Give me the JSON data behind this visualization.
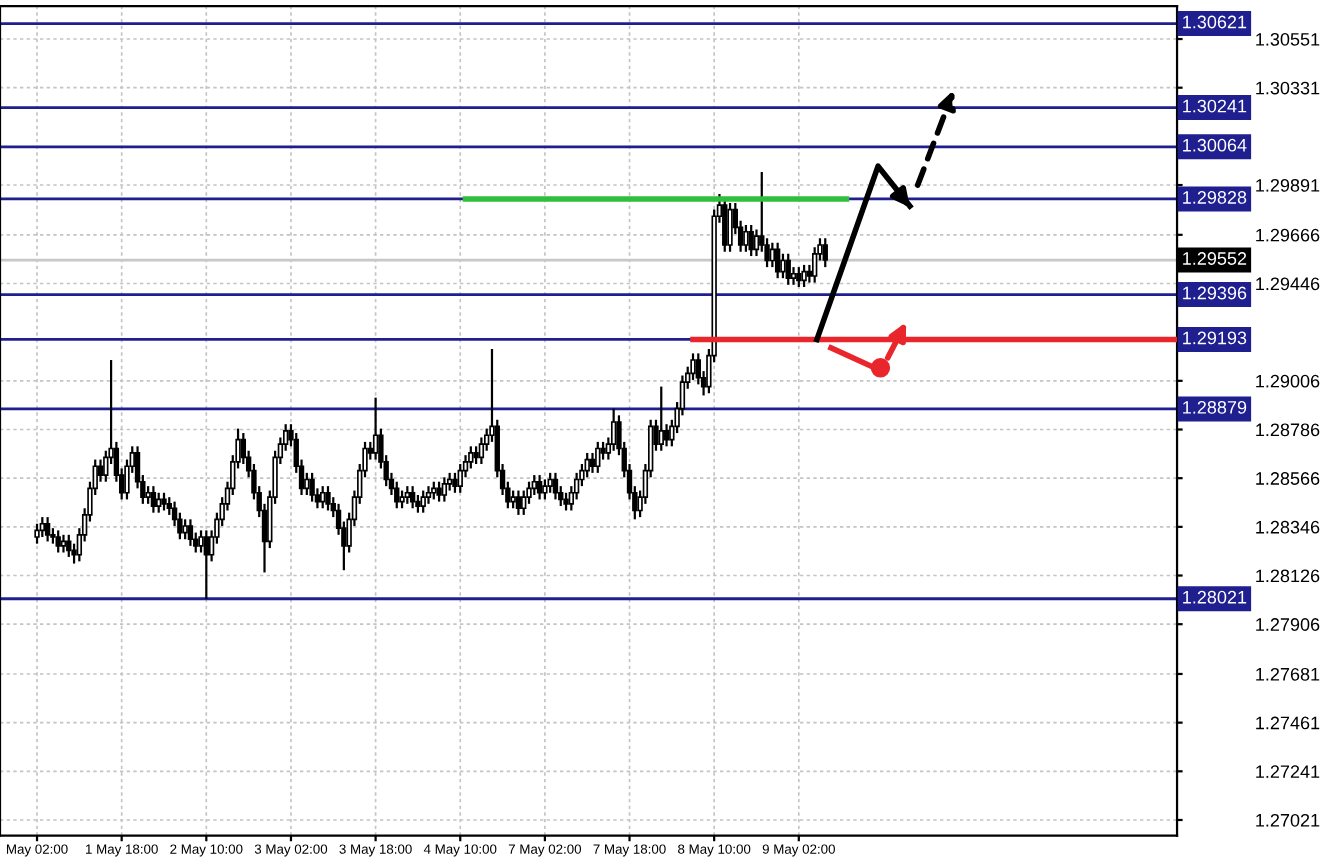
{
  "chart_data": {
    "type": "candlestick",
    "color": "#000000",
    "categories": [
      "May 02:00",
      null,
      null,
      null,
      null,
      null,
      null,
      null,
      null,
      null,
      null,
      null,
      null,
      null,
      null,
      null,
      "1 May 18:00",
      null,
      null,
      null,
      null,
      null,
      null,
      null,
      null,
      null,
      null,
      null,
      null,
      null,
      null,
      null,
      "2 May 10:00",
      null,
      null,
      null,
      null,
      null,
      null,
      null,
      null,
      null,
      null,
      null,
      null,
      null,
      null,
      null,
      "3 May 02:00",
      null,
      null,
      null,
      null,
      null,
      null,
      null,
      null,
      null,
      null,
      null,
      null,
      null,
      null,
      null,
      "3 May 18:00",
      null,
      null,
      null,
      null,
      null,
      null,
      null,
      null,
      null,
      null,
      null,
      null,
      null,
      null,
      null,
      "4 May 10:00",
      null,
      null,
      null,
      null,
      null,
      null,
      null,
      null,
      null,
      null,
      null,
      null,
      null,
      null,
      null,
      "7 May 02:00",
      null,
      null,
      null,
      null,
      null,
      null,
      null,
      null,
      null,
      null,
      null,
      null,
      null,
      null,
      null,
      "7 May 18:00",
      null,
      null,
      null,
      null,
      null,
      null,
      null,
      null,
      null,
      null,
      null,
      null,
      null,
      null,
      null,
      "8 May 10:00",
      null,
      null,
      null,
      null,
      null,
      null,
      null,
      null,
      null,
      null,
      null,
      null,
      null,
      null,
      null,
      "9 May 02:00",
      null,
      null,
      null,
      null,
      null,
      null,
      null,
      null,
      null,
      null,
      null,
      null,
      null,
      null,
      null,
      null,
      null,
      null,
      null,
      null,
      null,
      null,
      null,
      null,
      null,
      null,
      null,
      null,
      null,
      null,
      null,
      null,
      null,
      null,
      null,
      null,
      null,
      null,
      null,
      null,
      null,
      null,
      null,
      null,
      null,
      null,
      null,
      null,
      null,
      null,
      null,
      null,
      null,
      null,
      null,
      null,
      null,
      null,
      null,
      null,
      null,
      null,
      null,
      null,
      null,
      null,
      null,
      null,
      null,
      null,
      null
    ],
    "ohlc": [
      [
        1.283,
        1.2836,
        1.2827,
        1.2833
      ],
      [
        1.2833,
        1.2839,
        1.283,
        1.2836
      ],
      [
        1.2836,
        1.2839,
        1.2828,
        1.2831
      ],
      [
        1.2831,
        1.2834,
        1.2827,
        1.283
      ],
      [
        1.283,
        1.2833,
        1.2823,
        1.2826
      ],
      [
        1.2826,
        1.2831,
        1.2823,
        1.2828
      ],
      [
        1.2828,
        1.2831,
        1.2821,
        1.2824
      ],
      [
        1.2824,
        1.2827,
        1.2818,
        1.2822
      ],
      [
        1.2822,
        1.2834,
        1.2819,
        1.2831
      ],
      [
        1.2831,
        1.2843,
        1.2828,
        1.284
      ],
      [
        1.284,
        1.2855,
        1.2837,
        1.2852
      ],
      [
        1.2852,
        1.2865,
        1.2849,
        1.2862
      ],
      [
        1.2862,
        1.2865,
        1.2855,
        1.2858
      ],
      [
        1.2858,
        1.2869,
        1.2855,
        1.2866
      ],
      [
        1.2866,
        1.291,
        1.2863,
        1.287
      ],
      [
        1.287,
        1.2873,
        1.2855,
        1.2858
      ],
      [
        1.2858,
        1.2861,
        1.2847,
        1.285
      ],
      [
        1.285,
        1.2865,
        1.2847,
        1.2862
      ],
      [
        1.2862,
        1.2871,
        1.2859,
        1.2868
      ],
      [
        1.2868,
        1.2871,
        1.2852,
        1.2855
      ],
      [
        1.2855,
        1.2858,
        1.2845,
        1.2848
      ],
      [
        1.2848,
        1.2853,
        1.2845,
        1.285
      ],
      [
        1.285,
        1.2853,
        1.2841,
        1.2844
      ],
      [
        1.2844,
        1.285,
        1.2841,
        1.2847
      ],
      [
        1.2847,
        1.285,
        1.2842,
        1.2845
      ],
      [
        1.2845,
        1.2848,
        1.284,
        1.2843
      ],
      [
        1.2843,
        1.2846,
        1.2835,
        1.2838
      ],
      [
        1.2838,
        1.2841,
        1.2829,
        1.2832
      ],
      [
        1.2832,
        1.2838,
        1.2829,
        1.2835
      ],
      [
        1.2835,
        1.2838,
        1.2826,
        1.2829
      ],
      [
        1.2829,
        1.2832,
        1.2823,
        1.2826
      ],
      [
        1.2826,
        1.2833,
        1.2823,
        1.283
      ],
      [
        1.283,
        1.2833,
        1.2802,
        1.2822
      ],
      [
        1.2822,
        1.2833,
        1.2819,
        1.283
      ],
      [
        1.283,
        1.2841,
        1.2827,
        1.2838
      ],
      [
        1.2838,
        1.2848,
        1.2835,
        1.2845
      ],
      [
        1.2845,
        1.2855,
        1.2842,
        1.2852
      ],
      [
        1.2852,
        1.2867,
        1.2849,
        1.2864
      ],
      [
        1.2864,
        1.2879,
        1.2861,
        1.2874
      ],
      [
        1.2874,
        1.2877,
        1.2863,
        1.2866
      ],
      [
        1.2866,
        1.2869,
        1.2857,
        1.286
      ],
      [
        1.286,
        1.2863,
        1.2847,
        1.285
      ],
      [
        1.285,
        1.2853,
        1.2839,
        1.2842
      ],
      [
        1.2842,
        1.2845,
        1.2814,
        1.2828
      ],
      [
        1.2828,
        1.2851,
        1.2825,
        1.2848
      ],
      [
        1.2848,
        1.2869,
        1.2845,
        1.2866
      ],
      [
        1.2866,
        1.2875,
        1.2863,
        1.2872
      ],
      [
        1.2872,
        1.2881,
        1.2869,
        1.2878
      ],
      [
        1.2878,
        1.2881,
        1.2871,
        1.2874
      ],
      [
        1.2874,
        1.2877,
        1.2859,
        1.2862
      ],
      [
        1.2862,
        1.2865,
        1.2849,
        1.2852
      ],
      [
        1.2852,
        1.2859,
        1.2849,
        1.2856
      ],
      [
        1.2856,
        1.2859,
        1.2846,
        1.2849
      ],
      [
        1.2849,
        1.2852,
        1.2843,
        1.2846
      ],
      [
        1.2846,
        1.2853,
        1.2843,
        1.285
      ],
      [
        1.285,
        1.2853,
        1.2842,
        1.2845
      ],
      [
        1.2845,
        1.2848,
        1.2839,
        1.2842
      ],
      [
        1.2842,
        1.2845,
        1.2831,
        1.2834
      ],
      [
        1.2834,
        1.2837,
        1.2815,
        1.2826
      ],
      [
        1.2826,
        1.2841,
        1.2823,
        1.2838
      ],
      [
        1.2838,
        1.2851,
        1.2835,
        1.2848
      ],
      [
        1.2848,
        1.2863,
        1.2845,
        1.286
      ],
      [
        1.286,
        1.2873,
        1.2857,
        1.287
      ],
      [
        1.287,
        1.2873,
        1.2865,
        1.2868
      ],
      [
        1.2868,
        1.2893,
        1.2865,
        1.2876
      ],
      [
        1.2876,
        1.2879,
        1.2861,
        1.2864
      ],
      [
        1.2864,
        1.2867,
        1.2853,
        1.2856
      ],
      [
        1.2856,
        1.2859,
        1.2849,
        1.2852
      ],
      [
        1.2852,
        1.2855,
        1.2843,
        1.2846
      ],
      [
        1.2846,
        1.2851,
        1.2843,
        1.2848
      ],
      [
        1.2848,
        1.2853,
        1.2845,
        1.285
      ],
      [
        1.285,
        1.2853,
        1.2843,
        1.2846
      ],
      [
        1.2846,
        1.2849,
        1.2841,
        1.2844
      ],
      [
        1.2844,
        1.2851,
        1.2841,
        1.2848
      ],
      [
        1.2848,
        1.2853,
        1.2845,
        1.285
      ],
      [
        1.285,
        1.2855,
        1.2847,
        1.2852
      ],
      [
        1.2852,
        1.2855,
        1.2846,
        1.2849
      ],
      [
        1.2849,
        1.2857,
        1.2846,
        1.2854
      ],
      [
        1.2854,
        1.2859,
        1.2851,
        1.2856
      ],
      [
        1.2856,
        1.2859,
        1.285,
        1.2853
      ],
      [
        1.2853,
        1.2863,
        1.285,
        1.286
      ],
      [
        1.286,
        1.2867,
        1.2857,
        1.2864
      ],
      [
        1.2864,
        1.2871,
        1.2861,
        1.2868
      ],
      [
        1.2868,
        1.2871,
        1.2863,
        1.2866
      ],
      [
        1.2866,
        1.2875,
        1.2863,
        1.2872
      ],
      [
        1.2872,
        1.2879,
        1.2869,
        1.2876
      ],
      [
        1.2876,
        1.2915,
        1.2873,
        1.288
      ],
      [
        1.288,
        1.2883,
        1.2857,
        1.286
      ],
      [
        1.286,
        1.2863,
        1.2849,
        1.2852
      ],
      [
        1.2852,
        1.2855,
        1.2843,
        1.2846
      ],
      [
        1.2846,
        1.2851,
        1.2843,
        1.2848
      ],
      [
        1.2848,
        1.2851,
        1.284,
        1.2843
      ],
      [
        1.2843,
        1.2851,
        1.284,
        1.2848
      ],
      [
        1.2848,
        1.2855,
        1.2845,
        1.2852
      ],
      [
        1.2852,
        1.2858,
        1.2849,
        1.2855
      ],
      [
        1.2855,
        1.2858,
        1.2847,
        1.285
      ],
      [
        1.285,
        1.2856,
        1.2847,
        1.2853
      ],
      [
        1.2853,
        1.2859,
        1.285,
        1.2856
      ],
      [
        1.2856,
        1.2859,
        1.2847,
        1.285
      ],
      [
        1.285,
        1.2853,
        1.2844,
        1.2847
      ],
      [
        1.2847,
        1.285,
        1.2842,
        1.2845
      ],
      [
        1.2845,
        1.2853,
        1.2842,
        1.285
      ],
      [
        1.285,
        1.2859,
        1.2847,
        1.2856
      ],
      [
        1.2856,
        1.2863,
        1.2853,
        1.286
      ],
      [
        1.286,
        1.2868,
        1.2857,
        1.2865
      ],
      [
        1.2865,
        1.2868,
        1.2859,
        1.2862
      ],
      [
        1.2862,
        1.2873,
        1.2859,
        1.287
      ],
      [
        1.287,
        1.2873,
        1.2865,
        1.2868
      ],
      [
        1.2868,
        1.2875,
        1.2865,
        1.2872
      ],
      [
        1.2872,
        1.2888,
        1.2869,
        1.2882
      ],
      [
        1.2882,
        1.2885,
        1.2867,
        1.287
      ],
      [
        1.287,
        1.2873,
        1.2857,
        1.286
      ],
      [
        1.286,
        1.2863,
        1.2847,
        1.285
      ],
      [
        1.285,
        1.2853,
        1.2838,
        1.2842
      ],
      [
        1.2842,
        1.2851,
        1.2839,
        1.2848
      ],
      [
        1.2848,
        1.2863,
        1.2845,
        1.286
      ],
      [
        1.286,
        1.2883,
        1.2857,
        1.288
      ],
      [
        1.288,
        1.2883,
        1.2869,
        1.2872
      ],
      [
        1.2872,
        1.2898,
        1.2869,
        1.2878
      ],
      [
        1.2878,
        1.2881,
        1.2871,
        1.2874
      ],
      [
        1.2874,
        1.2883,
        1.2871,
        1.288
      ],
      [
        1.288,
        1.2891,
        1.2877,
        1.2888
      ],
      [
        1.2888,
        1.2903,
        1.2885,
        1.29
      ],
      [
        1.29,
        1.2907,
        1.2897,
        1.2904
      ],
      [
        1.2904,
        1.2913,
        1.2901,
        1.291
      ],
      [
        1.291,
        1.2913,
        1.2899,
        1.2902
      ],
      [
        1.2902,
        1.2905,
        1.2894,
        1.2898
      ],
      [
        1.2898,
        1.2915,
        1.2895,
        1.2912
      ],
      [
        1.2912,
        1.2978,
        1.2909,
        1.2975
      ],
      [
        1.2975,
        1.2985,
        1.2972,
        1.298
      ],
      [
        1.298,
        1.2983,
        1.2959,
        1.2962
      ],
      [
        1.2962,
        1.2981,
        1.2959,
        1.2978
      ],
      [
        1.2978,
        1.2981,
        1.2967,
        1.297
      ],
      [
        1.297,
        1.2973,
        1.2959,
        1.2962
      ],
      [
        1.2962,
        1.2971,
        1.2959,
        1.2968
      ],
      [
        1.2968,
        1.2971,
        1.2957,
        1.296
      ],
      [
        1.296,
        1.2969,
        1.2957,
        1.2966
      ],
      [
        1.2966,
        1.2995,
        1.2959,
        1.2962
      ],
      [
        1.2962,
        1.2965,
        1.2952,
        1.2955
      ],
      [
        1.2955,
        1.2963,
        1.2952,
        1.296
      ],
      [
        1.296,
        1.2963,
        1.2947,
        1.295
      ],
      [
        1.295,
        1.2958,
        1.2947,
        1.2955
      ],
      [
        1.2955,
        1.2958,
        1.2944,
        1.2947
      ],
      [
        1.2947,
        1.2952,
        1.2944,
        1.2949
      ],
      [
        1.2949,
        1.2952,
        1.2943,
        1.2946
      ],
      [
        1.2946,
        1.2953,
        1.2943,
        1.295
      ],
      [
        1.295,
        1.2953,
        1.2945,
        1.2948
      ],
      [
        1.2948,
        1.2961,
        1.2945,
        1.2958
      ],
      [
        1.2958,
        1.2965,
        1.2955,
        1.2962
      ],
      [
        1.2962,
        1.2965,
        1.2952,
        1.29552
      ],
      null,
      null,
      null,
      null,
      null,
      null,
      null,
      null,
      null,
      null,
      null,
      null,
      null,
      null,
      null,
      null,
      null,
      null,
      null,
      null,
      null,
      null,
      null,
      null,
      null,
      null,
      null,
      null,
      null,
      null,
      null,
      null,
      null,
      null,
      null,
      null,
      null,
      null,
      null,
      null,
      null,
      null,
      null,
      null,
      null,
      null,
      null,
      null,
      null,
      null,
      null,
      null,
      null,
      null,
      null,
      null,
      null,
      null,
      null,
      null,
      null,
      null,
      null,
      null,
      null,
      null
    ],
    "series": [
      {
        "type": "line",
        "color": "#2fbf3a",
        "values": [
          null,
          null,
          null,
          null,
          null,
          null,
          null,
          null,
          null,
          null,
          null,
          null,
          null,
          null,
          null,
          null,
          null,
          null,
          null,
          null,
          null,
          null,
          null,
          null,
          null,
          null,
          null,
          null,
          null,
          null,
          null,
          null,
          null,
          null,
          null,
          null,
          null,
          null,
          null,
          null,
          null,
          null,
          null,
          null,
          null,
          null,
          null,
          null,
          null,
          null,
          null,
          null,
          null,
          null,
          null,
          null,
          null,
          null,
          null,
          null,
          null,
          null,
          null,
          null,
          null,
          null,
          null,
          null,
          null,
          null,
          null,
          null,
          null,
          null,
          null,
          null,
          null,
          null,
          null,
          null,
          null,
          1.29828,
          1.29828,
          1.29828,
          1.29828,
          1.29828,
          1.29828,
          1.29828,
          1.29828,
          1.29828,
          1.29828,
          1.29828,
          1.29828,
          1.29828,
          1.29828,
          1.29828,
          1.29828,
          1.29828,
          1.29828,
          1.29828,
          1.29828,
          1.29828,
          1.29828,
          1.29828,
          1.29828,
          1.29828,
          1.29828,
          1.29828,
          1.29828,
          1.29828,
          1.29828,
          1.29828,
          1.29828,
          1.29828,
          1.29828,
          1.29828,
          1.29828,
          1.29828,
          1.29828,
          1.29828,
          1.29828,
          1.29828,
          1.29828,
          1.29828,
          1.29828,
          1.29828,
          1.29828,
          1.29828,
          1.29828,
          1.29828,
          1.29828,
          1.29828,
          1.29828,
          1.29828,
          1.29828,
          1.29828,
          1.29828,
          1.29828,
          1.29828,
          1.29828,
          1.29828,
          1.29828,
          1.29828,
          1.29828,
          1.29828,
          1.29828,
          1.29828,
          1.29828,
          1.29828,
          1.29828,
          1.29828,
          1.29828,
          1.29828,
          1.29828,
          null,
          null,
          null,
          null,
          null,
          null,
          null,
          null,
          null,
          null,
          null,
          null,
          null,
          null,
          null,
          null,
          null,
          null,
          null,
          null,
          null,
          null,
          null,
          null,
          null,
          null,
          null,
          null,
          null,
          null,
          null,
          null,
          null,
          null,
          null,
          null,
          null,
          null,
          null,
          null,
          null,
          null,
          null,
          null,
          null,
          null,
          null,
          null,
          null,
          null,
          null,
          null,
          null,
          null,
          null,
          null,
          null,
          null,
          null,
          null,
          null,
          null
        ]
      },
      {
        "type": "line",
        "color": "#e8262b",
        "values": [
          null,
          null,
          null,
          null,
          null,
          null,
          null,
          null,
          null,
          null,
          null,
          null,
          null,
          null,
          null,
          null,
          null,
          null,
          null,
          null,
          null,
          null,
          null,
          null,
          null,
          null,
          null,
          null,
          null,
          null,
          null,
          null,
          null,
          null,
          null,
          null,
          null,
          null,
          null,
          null,
          null,
          null,
          null,
          null,
          null,
          null,
          null,
          null,
          null,
          null,
          null,
          null,
          null,
          null,
          null,
          null,
          null,
          null,
          null,
          null,
          null,
          null,
          null,
          null,
          null,
          null,
          null,
          null,
          null,
          null,
          null,
          null,
          null,
          null,
          null,
          null,
          null,
          null,
          null,
          null,
          null,
          null,
          null,
          null,
          null,
          null,
          null,
          null,
          null,
          null,
          null,
          null,
          null,
          null,
          null,
          null,
          null,
          null,
          null,
          null,
          null,
          null,
          null,
          null,
          null,
          null,
          null,
          null,
          null,
          null,
          null,
          null,
          null,
          null,
          null,
          null,
          null,
          null,
          null,
          null,
          null,
          null,
          null,
          null,
          1.29193,
          1.29193,
          1.29193,
          1.29193,
          1.29193,
          1.29193,
          1.29193,
          1.29193,
          1.29193,
          1.29193,
          1.29193,
          1.29193,
          1.29193,
          1.29193,
          1.29193,
          1.29193,
          1.29193,
          1.29193,
          1.29193,
          1.29193,
          1.29193,
          1.29193,
          1.29193,
          1.29193,
          1.29193,
          1.29193,
          1.29193,
          1.29193,
          1.29193,
          1.29193,
          1.29193,
          1.29193,
          1.29193,
          1.29193,
          1.29193,
          1.29193,
          1.29193,
          1.29193,
          1.29193,
          1.29193,
          1.29193,
          1.29193,
          1.29193,
          1.29193,
          1.29193,
          1.29193,
          1.29193,
          1.29193,
          1.29193,
          1.29193,
          1.29193,
          1.29193,
          1.29193,
          1.29193,
          1.29193,
          1.29193,
          1.29193,
          1.29193,
          1.29193,
          1.29193,
          1.29193,
          1.29193,
          1.29193,
          1.29193,
          1.29193,
          1.29193,
          1.29193,
          1.29193,
          1.29193,
          1.29193,
          1.29193,
          1.29193,
          1.29193,
          1.29193,
          1.29193,
          1.29193,
          1.29193,
          1.29193,
          1.29193,
          1.29193,
          1.29193,
          1.29193,
          1.29193,
          1.29193,
          1.29193,
          1.29193,
          1.29193,
          1.29193,
          1.29193,
          1.29193,
          1.29193,
          1.29193
        ]
      }
    ],
    "ylim": [
      1.2695,
      1.307
    ],
    "yticks": [
      1.27021,
      1.27241,
      1.27461,
      1.27681,
      1.27906,
      1.28126,
      1.28346,
      1.28566,
      1.28786,
      1.29006,
      1.29446,
      1.29666,
      1.29891,
      1.30331,
      1.30551
    ],
    "ref_lines": [
      {
        "axis": "y",
        "value": 1.30621,
        "label": "1.30621",
        "color": "#1f1f8f"
      },
      {
        "axis": "y",
        "value": 1.30241,
        "label": "1.30241",
        "color": "#1f1f8f"
      },
      {
        "axis": "y",
        "value": 1.30064,
        "label": "1.30064",
        "color": "#1f1f8f"
      },
      {
        "axis": "y",
        "value": 1.29828,
        "label": "1.29828",
        "color": "#1f1f8f"
      },
      {
        "axis": "y",
        "value": 1.29552,
        "label": "1.29552",
        "color": "#c8c8c8"
      },
      {
        "axis": "y",
        "value": 1.29396,
        "label": "1.29396",
        "color": "#1f1f8f"
      },
      {
        "axis": "y",
        "value": 1.29193,
        "label": "1.29193",
        "color": "#1f1f8f"
      },
      {
        "axis": "y",
        "value": 1.28879,
        "label": "1.28879",
        "color": "#1f1f8f"
      },
      {
        "axis": "y",
        "value": 1.28021,
        "label": "1.28021",
        "color": "#1f1f8f"
      }
    ],
    "grid": true
  }
}
